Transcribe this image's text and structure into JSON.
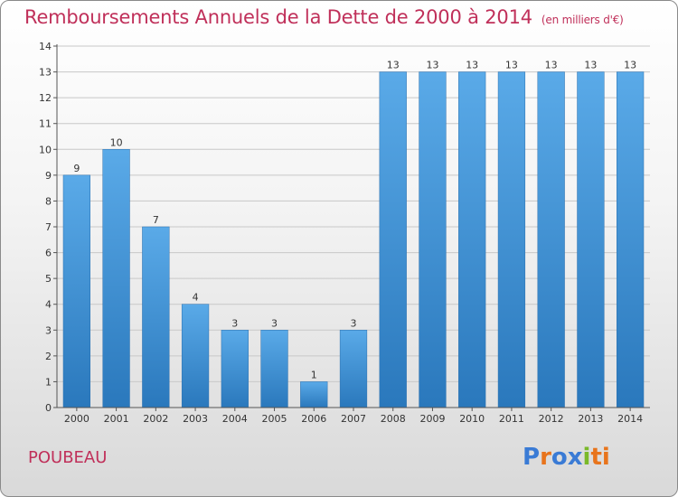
{
  "title": "Remboursements Annuels de la Dette de 2000 à 2014",
  "unit_note": "(en milliers d'€)",
  "commune": "POUBEAU",
  "logo": {
    "text": "Proxiti",
    "colors": [
      "#3a7bd5",
      "#e8741c",
      "#3a7bd5",
      "#3a7bd5",
      "#7ab929",
      "#e8741c",
      "#e8741c"
    ]
  },
  "chart_data": {
    "type": "bar",
    "categories": [
      "2000",
      "2001",
      "2002",
      "2003",
      "2004",
      "2005",
      "2006",
      "2007",
      "2008",
      "2009",
      "2010",
      "2011",
      "2012",
      "2013",
      "2014"
    ],
    "values": [
      9,
      10,
      7,
      4,
      3,
      3,
      1,
      3,
      13,
      13,
      13,
      13,
      13,
      13,
      13
    ],
    "ylim": [
      0,
      14
    ],
    "yticks": [
      0,
      1,
      2,
      3,
      4,
      5,
      6,
      7,
      8,
      9,
      10,
      11,
      12,
      13,
      14
    ],
    "grid": true,
    "bar_color": "#3e8fd8"
  }
}
